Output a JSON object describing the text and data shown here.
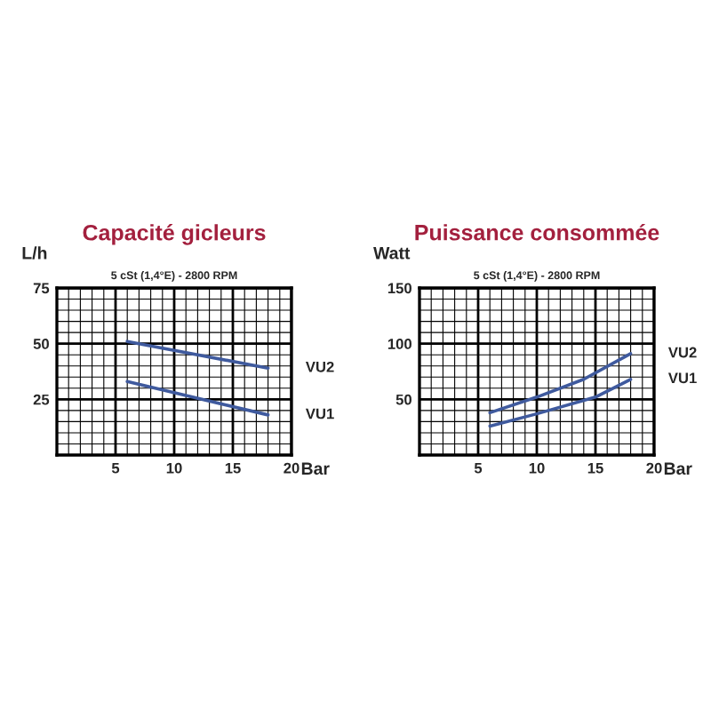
{
  "chart_data": [
    {
      "type": "line",
      "title": "Capacité gicleurs",
      "subtitle": "5 cSt (1,4°E) - 2800 RPM",
      "xlabel": "Bar",
      "ylabel": "L/h",
      "xlim": [
        0,
        20
      ],
      "ylim": [
        0,
        75
      ],
      "xticks": [
        5,
        10,
        15,
        20
      ],
      "yticks": [
        25,
        50,
        75
      ],
      "grid": true,
      "legend": false,
      "series": [
        {
          "name": "VU2",
          "color": "#3f5a9e",
          "x": [
            6,
            18
          ],
          "values": [
            51,
            39
          ]
        },
        {
          "name": "VU1",
          "color": "#3f5a9e",
          "x": [
            6,
            18
          ],
          "values": [
            33,
            18
          ]
        }
      ]
    },
    {
      "type": "line",
      "title": "Puissance consommée",
      "subtitle": "5 cSt (1,4°E) - 2800 RPM",
      "xlabel": "Bar",
      "ylabel": "Watt",
      "xlim": [
        0,
        20
      ],
      "ylim": [
        0,
        150
      ],
      "xticks": [
        5,
        10,
        15,
        20
      ],
      "yticks": [
        50,
        100,
        150
      ],
      "grid": true,
      "legend": false,
      "series": [
        {
          "name": "VU2",
          "color": "#3f5a9e",
          "x": [
            6,
            10,
            14,
            18
          ],
          "values": [
            38,
            52,
            68,
            91
          ]
        },
        {
          "name": "VU1",
          "color": "#3f5a9e",
          "x": [
            6,
            10,
            15,
            18
          ],
          "values": [
            26,
            37,
            52,
            68
          ]
        }
      ]
    }
  ]
}
